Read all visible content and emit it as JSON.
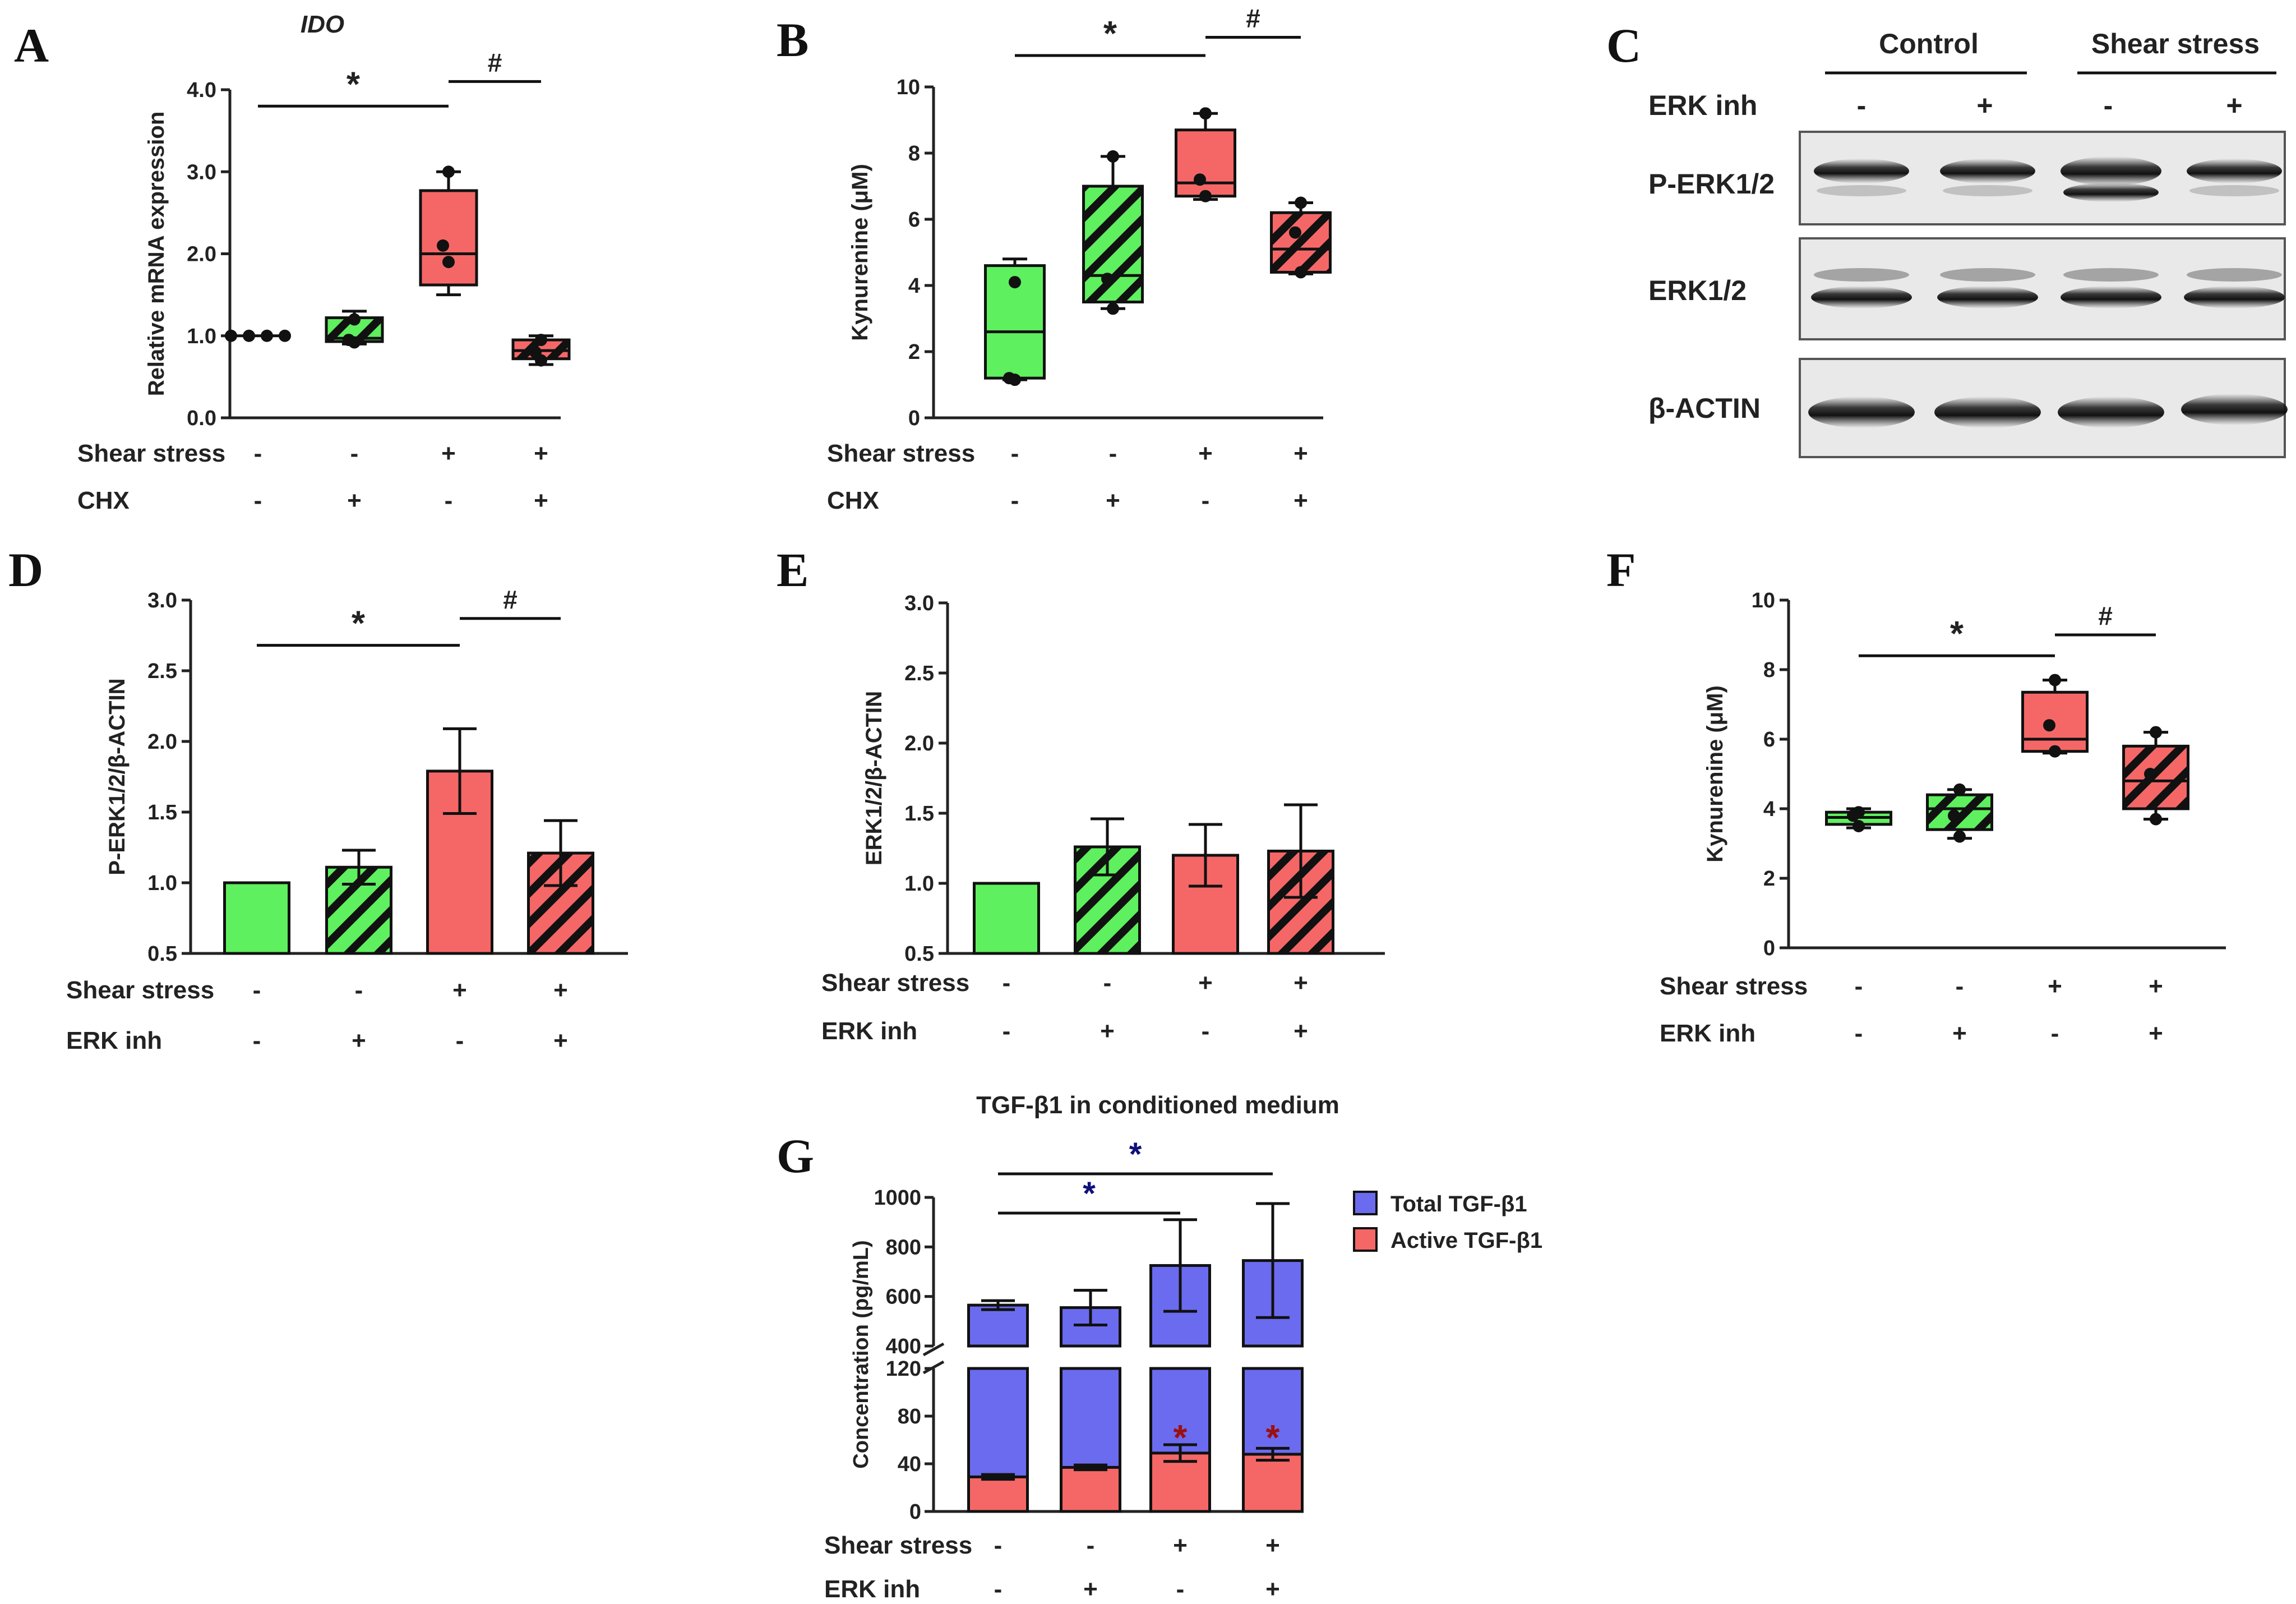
{
  "panel_letters": {
    "a": "A",
    "b": "B",
    "c": "C",
    "d": "D",
    "e": "E",
    "f": "F",
    "g": "G"
  },
  "colors": {
    "green": "#5ef05e",
    "red": "#f56767",
    "blue": "#6b6bf0",
    "dark_red": "#9b1010",
    "dark_blue": "#10107b"
  },
  "conditions": {
    "shear_label": "Shear stress",
    "chx_label": "CHX",
    "erk_label": "ERK inh",
    "minus": "-",
    "plus": "+"
  },
  "western_blot": {
    "group_control": "Control",
    "group_shear": "Shear stress",
    "treatment_label": "ERK inh",
    "treatment_signs": [
      "-",
      "+",
      "-",
      "+"
    ],
    "row_labels": [
      "P-ERK1/2",
      "ERK1/2",
      "β-ACTIN"
    ]
  },
  "chart_data": [
    {
      "id": "A",
      "type": "box",
      "title": "IDO",
      "ylabel": "Relative mRNA expression",
      "ylim": [
        0,
        4
      ],
      "yticks": [
        "0.0",
        "1.0",
        "2.0",
        "3.0",
        "4.0"
      ],
      "shear": [
        "-",
        "-",
        "+",
        "+"
      ],
      "treat": [
        "-",
        "+",
        "-",
        "+"
      ],
      "treat_label": "CHX",
      "boxes": [
        {
          "color": "green",
          "hatch": false,
          "q1": 1.0,
          "median": 1.0,
          "q3": 1.0,
          "min": 1.0,
          "max": 1.0,
          "points": [
            1.0,
            1.0,
            1.0,
            1.0
          ],
          "flat": true
        },
        {
          "color": "green",
          "hatch": true,
          "q1": 0.93,
          "median": 0.97,
          "q3": 1.22,
          "min": 0.9,
          "max": 1.3,
          "points": [
            1.2,
            0.95,
            0.92
          ]
        },
        {
          "color": "red",
          "hatch": false,
          "q1": 1.62,
          "median": 2.0,
          "q3": 2.77,
          "min": 1.5,
          "max": 3.0,
          "points": [
            3.0,
            2.1,
            1.9
          ]
        },
        {
          "color": "red",
          "hatch": true,
          "q1": 0.72,
          "median": 0.82,
          "q3": 0.95,
          "min": 0.65,
          "max": 1.0,
          "points": [
            0.95,
            0.8,
            0.7
          ]
        }
      ],
      "sig": [
        {
          "from": 0,
          "to": 2,
          "label": "*",
          "level": 3.8
        },
        {
          "from": 2,
          "to": 3,
          "label": "#",
          "level": 4.1
        }
      ]
    },
    {
      "id": "B",
      "type": "box",
      "ylabel": "Kynurenine (μM)",
      "ylim": [
        0,
        10
      ],
      "yticks": [
        "0",
        "2",
        "4",
        "6",
        "8",
        "10"
      ],
      "shear": [
        "-",
        "-",
        "+",
        "+"
      ],
      "treat": [
        "-",
        "+",
        "-",
        "+"
      ],
      "treat_label": "CHX",
      "boxes": [
        {
          "color": "green",
          "hatch": false,
          "q1": 1.2,
          "median": 2.6,
          "q3": 4.6,
          "min": 1.15,
          "max": 4.8,
          "points": [
            4.1,
            1.2,
            1.15
          ]
        },
        {
          "color": "green",
          "hatch": true,
          "q1": 3.5,
          "median": 4.3,
          "q3": 7.0,
          "min": 3.3,
          "max": 7.9,
          "points": [
            7.9,
            4.2,
            3.3
          ]
        },
        {
          "color": "red",
          "hatch": false,
          "q1": 6.7,
          "median": 7.1,
          "q3": 8.7,
          "min": 6.6,
          "max": 9.2,
          "points": [
            9.2,
            7.2,
            6.7
          ]
        },
        {
          "color": "red",
          "hatch": true,
          "q1": 4.4,
          "median": 5.1,
          "q3": 6.2,
          "min": 4.35,
          "max": 6.5,
          "points": [
            6.5,
            5.6,
            4.4
          ]
        }
      ],
      "sig": [
        {
          "from": 0,
          "to": 2,
          "label": "*",
          "level": 10.95
        },
        {
          "from": 2,
          "to": 3,
          "label": "#",
          "level": 11.5
        }
      ]
    },
    {
      "id": "D",
      "type": "bar",
      "ylabel": "P-ERK1/2/β-ACTIN",
      "ylim": [
        0.5,
        3.0
      ],
      "yticks": [
        "0.5",
        "1.0",
        "1.5",
        "2.0",
        "2.5",
        "3.0"
      ],
      "shear": [
        "-",
        "-",
        "+",
        "+"
      ],
      "treat": [
        "-",
        "+",
        "-",
        "+"
      ],
      "treat_label": "ERK inh",
      "bars": [
        {
          "color": "green",
          "hatch": false,
          "value": 1.0,
          "err": 0
        },
        {
          "color": "green",
          "hatch": true,
          "value": 1.11,
          "err": 0.12
        },
        {
          "color": "red",
          "hatch": false,
          "value": 1.79,
          "err": 0.3
        },
        {
          "color": "red",
          "hatch": true,
          "value": 1.21,
          "err": 0.23
        }
      ],
      "sig": [
        {
          "from": 0,
          "to": 2,
          "label": "*",
          "level": 2.68
        },
        {
          "from": 2,
          "to": 3,
          "label": "#",
          "level": 2.87
        }
      ]
    },
    {
      "id": "E",
      "type": "bar",
      "ylabel": "ERK1/2/β-ACTIN",
      "ylim": [
        0.5,
        3.0
      ],
      "yticks": [
        "0.5",
        "1.0",
        "1.5",
        "2.0",
        "2.5",
        "3.0"
      ],
      "shear": [
        "-",
        "-",
        "+",
        "+"
      ],
      "treat": [
        "-",
        "+",
        "-",
        "+"
      ],
      "treat_label": "ERK inh",
      "bars": [
        {
          "color": "green",
          "hatch": false,
          "value": 1.0,
          "err": 0
        },
        {
          "color": "green",
          "hatch": true,
          "value": 1.26,
          "err": 0.2
        },
        {
          "color": "red",
          "hatch": false,
          "value": 1.2,
          "err": 0.22
        },
        {
          "color": "red",
          "hatch": true,
          "value": 1.23,
          "err": 0.33
        }
      ],
      "sig": []
    },
    {
      "id": "F",
      "type": "box",
      "ylabel": "Kynurenine (μM)",
      "ylim": [
        0,
        10
      ],
      "yticks": [
        "0",
        "2",
        "4",
        "6",
        "8",
        "10"
      ],
      "shear": [
        "-",
        "-",
        "+",
        "+"
      ],
      "treat": [
        "-",
        "+",
        "-",
        "+"
      ],
      "treat_label": "ERK inh",
      "boxes": [
        {
          "color": "green",
          "hatch": false,
          "q1": 3.55,
          "median": 3.75,
          "q3": 3.9,
          "min": 3.45,
          "max": 4.0,
          "points": [
            3.9,
            3.8,
            3.5
          ]
        },
        {
          "color": "green",
          "hatch": true,
          "q1": 3.4,
          "median": 4.0,
          "q3": 4.4,
          "min": 3.15,
          "max": 4.55,
          "points": [
            4.55,
            3.8,
            3.2
          ]
        },
        {
          "color": "red",
          "hatch": false,
          "q1": 5.65,
          "median": 6.0,
          "q3": 7.35,
          "min": 5.6,
          "max": 7.7,
          "points": [
            7.7,
            6.4,
            5.65
          ]
        },
        {
          "color": "red",
          "hatch": true,
          "q1": 4.0,
          "median": 4.8,
          "q3": 5.8,
          "min": 3.7,
          "max": 6.2,
          "points": [
            6.2,
            5.0,
            3.7
          ]
        }
      ],
      "sig": [
        {
          "from": 0,
          "to": 2,
          "label": "*",
          "level": 8.4
        },
        {
          "from": 2,
          "to": 3,
          "label": "#",
          "level": 9.0
        }
      ]
    },
    {
      "id": "G",
      "type": "stacked-bar",
      "title": "TGF-β1 in conditioned medium",
      "ylabel": "Concentration (pg/mL)",
      "broken_axis": {
        "lower": [
          0,
          120
        ],
        "upper": [
          400,
          1000
        ]
      },
      "yticks_lower": [
        "0",
        "40",
        "80",
        "120"
      ],
      "yticks_upper": [
        "400",
        "600",
        "800",
        "1000"
      ],
      "shear": [
        "-",
        "-",
        "+",
        "+"
      ],
      "treat": [
        "-",
        "+",
        "-",
        "+"
      ],
      "treat_label": "ERK inh",
      "series": [
        {
          "name": "Total TGF-β1",
          "color": "blue",
          "values": [
            565,
            555,
            725,
            745
          ],
          "err": [
            18,
            70,
            185,
            230
          ]
        },
        {
          "name": "Active TGF-β1",
          "color": "red",
          "values": [
            29,
            37,
            49,
            48
          ],
          "err": [
            2,
            2,
            7,
            5
          ]
        }
      ],
      "active_sig": [
        {
          "index": 2,
          "label": "*"
        },
        {
          "index": 3,
          "label": "*"
        }
      ],
      "total_sig": [
        {
          "from": 0,
          "to": 2,
          "label": "*"
        },
        {
          "from": 0,
          "to": 3,
          "label": "*"
        }
      ]
    }
  ]
}
